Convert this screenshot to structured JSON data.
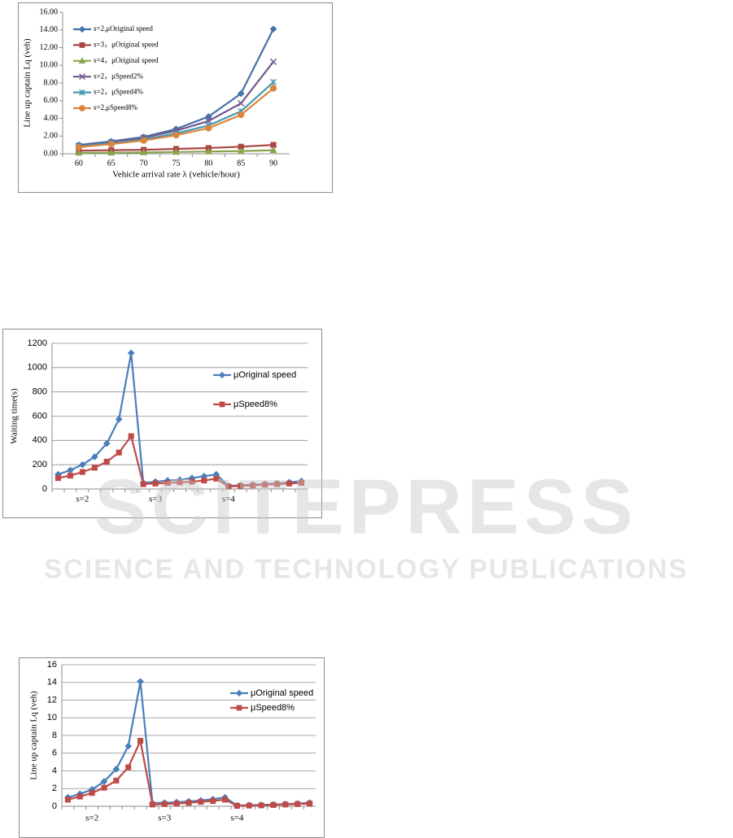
{
  "chart_data": [
    {
      "type": "line",
      "xlabel": "Vehicle arrival rate λ (vehicle/hour)",
      "ylabel": "Line up captain Lq (veh)",
      "categories": [
        "60",
        "65",
        "70",
        "75",
        "80",
        "85",
        "90"
      ],
      "ylim": [
        0,
        16
      ],
      "yticks": [
        {
          "value": 0,
          "label": "0.00"
        },
        {
          "value": 2,
          "label": "2.00"
        },
        {
          "value": 4,
          "label": "4.00"
        },
        {
          "value": 6,
          "label": "6.00"
        },
        {
          "value": 8,
          "label": "8.00"
        },
        {
          "value": 10,
          "label": "10.00"
        },
        {
          "value": 12,
          "label": "12.00"
        },
        {
          "value": 14,
          "label": "14.00"
        },
        {
          "value": 16,
          "label": "16.00"
        }
      ],
      "grid": false,
      "series": [
        {
          "name": "s=2,μOriginal speed",
          "color": "#4572a7",
          "marker": "diamond",
          "values": [
            1.0,
            1.4,
            1.9,
            2.8,
            4.2,
            6.8,
            14.1
          ]
        },
        {
          "name": "s=3，μOriginal speed",
          "color": "#aa4643",
          "marker": "square",
          "values": [
            0.35,
            0.4,
            0.45,
            0.55,
            0.65,
            0.8,
            1.0
          ]
        },
        {
          "name": "s=4，μOriginal speed",
          "color": "#89a54e",
          "marker": "triangle",
          "values": [
            0.1,
            0.12,
            0.15,
            0.2,
            0.25,
            0.3,
            0.4
          ]
        },
        {
          "name": "s=2，μSpeed2%",
          "color": "#71588f",
          "marker": "x",
          "values": [
            0.9,
            1.3,
            1.8,
            2.6,
            3.7,
            5.7,
            10.4
          ]
        },
        {
          "name": "s=2，μSpeed4%",
          "color": "#4198af",
          "marker": "star",
          "values": [
            0.85,
            1.2,
            1.6,
            2.3,
            3.2,
            4.8,
            8.1
          ]
        },
        {
          "name": "s=2,μSpeed8%",
          "color": "#db843d",
          "marker": "circle",
          "values": [
            0.75,
            1.1,
            1.5,
            2.1,
            2.9,
            4.4,
            7.4
          ]
        }
      ]
    },
    {
      "type": "line",
      "ylabel": "Waiting time(s)",
      "categories": [
        null,
        null,
        "s=2",
        null,
        null,
        null,
        null,
        null,
        "s=3",
        null,
        null,
        null,
        null,
        null,
        "s=4",
        null,
        null,
        null,
        null,
        null,
        null
      ],
      "ylim": [
        0,
        1200
      ],
      "yticks": [
        0,
        200,
        400,
        600,
        800,
        1000,
        1200
      ],
      "grid": true,
      "series": [
        {
          "name": "μOriginal speed",
          "color": "#4a7ebb",
          "marker": "diamond",
          "values": [
            120,
            155,
            200,
            265,
            375,
            575,
            1120,
            50,
            60,
            70,
            75,
            90,
            105,
            120,
            25,
            30,
            35,
            40,
            45,
            55,
            65
          ]
        },
        {
          "name": "μSpeed8%",
          "color": "#be4b48",
          "marker": "square",
          "values": [
            90,
            110,
            140,
            175,
            225,
            300,
            435,
            40,
            45,
            50,
            55,
            60,
            70,
            85,
            20,
            25,
            30,
            35,
            40,
            45,
            50
          ]
        }
      ]
    },
    {
      "type": "line",
      "ylabel": "Line up captain Lq (veh)",
      "categories": [
        null,
        null,
        "s=2",
        null,
        null,
        null,
        null,
        null,
        "s=3",
        null,
        null,
        null,
        null,
        null,
        "s=4",
        null,
        null,
        null,
        null,
        null,
        null
      ],
      "ylim": [
        0,
        16
      ],
      "yticks": [
        0,
        2,
        4,
        6,
        8,
        10,
        12,
        14,
        16
      ],
      "grid": true,
      "series": [
        {
          "name": "μOriginal speed",
          "color": "#4a7ebb",
          "marker": "diamond",
          "values": [
            1.0,
            1.4,
            1.9,
            2.8,
            4.2,
            6.8,
            14.1,
            0.35,
            0.4,
            0.45,
            0.55,
            0.65,
            0.8,
            1.0,
            0.1,
            0.12,
            0.15,
            0.2,
            0.25,
            0.3,
            0.4
          ]
        },
        {
          "name": "μSpeed8%",
          "color": "#be4b48",
          "marker": "square",
          "values": [
            0.75,
            1.1,
            1.5,
            2.1,
            2.9,
            4.4,
            7.4,
            0.2,
            0.25,
            0.3,
            0.4,
            0.5,
            0.6,
            0.75,
            0.05,
            0.08,
            0.1,
            0.15,
            0.2,
            0.25,
            0.3
          ]
        }
      ]
    }
  ],
  "watermark": {
    "name": "SCITEPRESS",
    "tagline": "SCIENCE AND TECHNOLOGY PUBLICATIONS"
  }
}
